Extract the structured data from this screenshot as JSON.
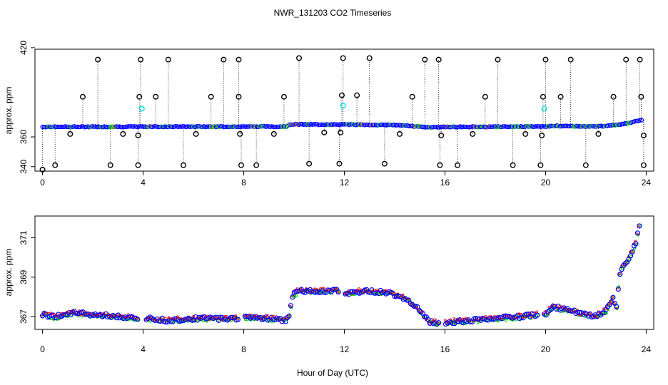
{
  "figure": {
    "title": "NWR_131203  CO2 Timeseries",
    "xlabel": "Hour of Day (UTC)"
  },
  "colors": {
    "flagged": "#000000",
    "selected": "#0000ff",
    "series_a": "#00cc00",
    "series_b": "#ff0000",
    "alt_flag": "#00e5e5",
    "brown": "#a0522d"
  },
  "chart_data": [
    {
      "type": "scatter",
      "title": "",
      "xlabel": "",
      "ylabel": "approx. ppm",
      "xlim": [
        -0.3,
        24.3
      ],
      "ylim": [
        337,
        419
      ],
      "xticks": [
        0,
        4,
        8,
        12,
        16,
        20,
        24
      ],
      "yticks": [
        340,
        360,
        420
      ],
      "ytick_labels": [
        "340",
        "360",
        "420"
      ],
      "baseline": [
        [
          0,
          366.8
        ],
        [
          9.7,
          367.0
        ],
        [
          9.8,
          368.4
        ],
        [
          12.0,
          368.3
        ],
        [
          14.0,
          368.0
        ],
        [
          15.3,
          366.6
        ],
        [
          16.0,
          366.7
        ],
        [
          19.6,
          367.0
        ],
        [
          19.9,
          366.9
        ],
        [
          20.3,
          367.4
        ],
        [
          22.0,
          367.0
        ],
        [
          22.8,
          368.0
        ],
        [
          23.2,
          369.0
        ],
        [
          23.8,
          371.5
        ]
      ],
      "outliers_high": [
        {
          "x": 0.0,
          "y": 338
        },
        {
          "x": 2.2,
          "y": 412
        },
        {
          "x": 3.9,
          "y": 412
        },
        {
          "x": 3.85,
          "y": 387
        },
        {
          "x": 1.6,
          "y": 387
        },
        {
          "x": 4.5,
          "y": 387
        },
        {
          "x": 5.0,
          "y": 412
        },
        {
          "x": 6.7,
          "y": 387
        },
        {
          "x": 7.2,
          "y": 412
        },
        {
          "x": 7.8,
          "y": 412
        },
        {
          "x": 7.8,
          "y": 387
        },
        {
          "x": 9.6,
          "y": 387
        },
        {
          "x": 10.2,
          "y": 413
        },
        {
          "x": 11.9,
          "y": 388
        },
        {
          "x": 11.95,
          "y": 413
        },
        {
          "x": 12.5,
          "y": 388
        },
        {
          "x": 13.0,
          "y": 413
        },
        {
          "x": 14.7,
          "y": 387
        },
        {
          "x": 15.2,
          "y": 412
        },
        {
          "x": 15.75,
          "y": 412
        },
        {
          "x": 17.6,
          "y": 387
        },
        {
          "x": 18.1,
          "y": 412
        },
        {
          "x": 19.9,
          "y": 387
        },
        {
          "x": 20.0,
          "y": 412
        },
        {
          "x": 20.6,
          "y": 387
        },
        {
          "x": 21.0,
          "y": 412
        },
        {
          "x": 22.7,
          "y": 387
        },
        {
          "x": 23.2,
          "y": 412
        },
        {
          "x": 23.75,
          "y": 412
        },
        {
          "x": 23.8,
          "y": 387
        }
      ],
      "outliers_low": [
        {
          "x": 0.5,
          "y": 341
        },
        {
          "x": 1.1,
          "y": 362
        },
        {
          "x": 2.7,
          "y": 341
        },
        {
          "x": 3.2,
          "y": 362
        },
        {
          "x": 3.8,
          "y": 341
        },
        {
          "x": 3.8,
          "y": 361
        },
        {
          "x": 5.6,
          "y": 341
        },
        {
          "x": 6.1,
          "y": 362
        },
        {
          "x": 7.9,
          "y": 341
        },
        {
          "x": 7.85,
          "y": 362
        },
        {
          "x": 8.5,
          "y": 341
        },
        {
          "x": 9.2,
          "y": 362
        },
        {
          "x": 10.6,
          "y": 342
        },
        {
          "x": 11.2,
          "y": 363
        },
        {
          "x": 11.8,
          "y": 342
        },
        {
          "x": 11.85,
          "y": 363
        },
        {
          "x": 13.6,
          "y": 342
        },
        {
          "x": 14.2,
          "y": 362
        },
        {
          "x": 15.8,
          "y": 341
        },
        {
          "x": 15.85,
          "y": 361
        },
        {
          "x": 16.5,
          "y": 341
        },
        {
          "x": 17.1,
          "y": 362
        },
        {
          "x": 18.7,
          "y": 341
        },
        {
          "x": 19.2,
          "y": 362
        },
        {
          "x": 19.8,
          "y": 341
        },
        {
          "x": 19.85,
          "y": 361
        },
        {
          "x": 21.6,
          "y": 341
        },
        {
          "x": 22.1,
          "y": 362
        },
        {
          "x": 23.9,
          "y": 341
        },
        {
          "x": 23.9,
          "y": 361
        }
      ],
      "cyan_points": [
        {
          "x": 3.95,
          "y": 379
        },
        {
          "x": 11.95,
          "y": 381
        },
        {
          "x": 19.95,
          "y": 379
        }
      ]
    },
    {
      "type": "line",
      "title": "",
      "xlabel": "Hour of Day (UTC)",
      "ylabel": "approx. ppm",
      "xlim": [
        -0.3,
        24.3
      ],
      "ylim": [
        366.35,
        372.1
      ],
      "xticks": [
        0,
        4,
        8,
        12,
        16,
        20,
        24
      ],
      "yticks": [
        367,
        369,
        371
      ],
      "series": [
        {
          "points": [
            [
              0,
              367.1
            ],
            [
              0.5,
              367.0
            ],
            [
              1.2,
              367.2
            ],
            [
              2.0,
              367.1
            ],
            [
              3.0,
              367.0
            ],
            [
              3.8,
              366.9
            ],
            [
              4.1,
              366.9
            ],
            [
              5.0,
              366.8
            ],
            [
              6.0,
              366.9
            ],
            [
              7.0,
              366.9
            ],
            [
              7.8,
              366.9
            ],
            [
              8.0,
              367.0
            ],
            [
              9.0,
              366.9
            ],
            [
              9.7,
              366.8
            ],
            [
              9.8,
              367.1
            ],
            [
              9.95,
              368.1
            ],
            [
              10.2,
              368.3
            ],
            [
              11.0,
              368.3
            ],
            [
              11.8,
              368.3
            ],
            [
              12.0,
              368.2
            ],
            [
              13.0,
              368.3
            ],
            [
              13.8,
              368.2
            ],
            [
              14.5,
              367.9
            ],
            [
              15.0,
              367.3
            ],
            [
              15.4,
              366.7
            ],
            [
              15.8,
              366.7
            ],
            [
              16.0,
              366.7
            ],
            [
              17.0,
              366.8
            ],
            [
              18.0,
              366.9
            ],
            [
              19.0,
              367.0
            ],
            [
              19.7,
              367.1
            ],
            [
              19.9,
              367.0
            ],
            [
              20.3,
              367.5
            ],
            [
              21.0,
              367.3
            ],
            [
              21.5,
              367.1
            ],
            [
              22.0,
              367.0
            ],
            [
              22.4,
              367.3
            ],
            [
              22.7,
              368.0
            ],
            [
              22.8,
              367.2
            ],
            [
              22.9,
              368.6
            ],
            [
              23.0,
              369.4
            ],
            [
              23.3,
              369.9
            ],
            [
              23.6,
              370.8
            ],
            [
              23.8,
              372.0
            ]
          ]
        }
      ]
    }
  ]
}
